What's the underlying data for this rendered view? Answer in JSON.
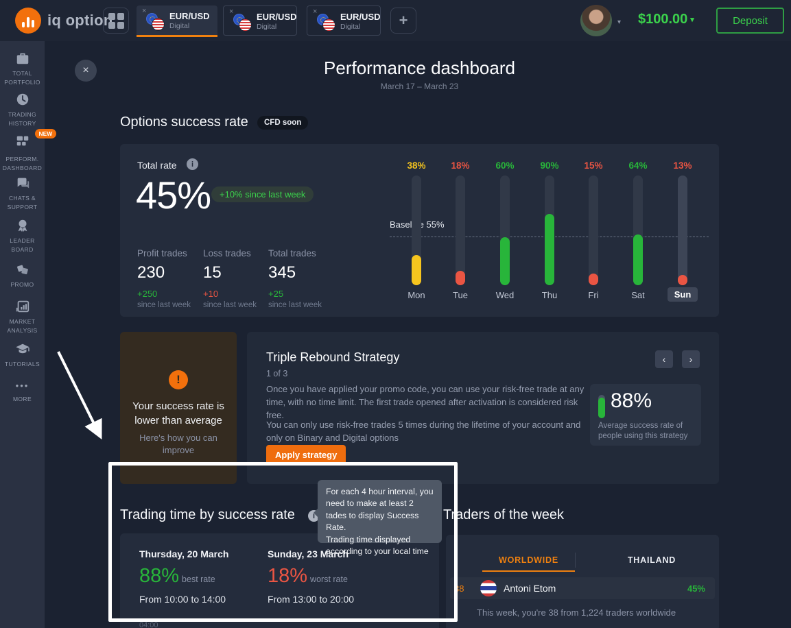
{
  "colors": {
    "green": "#28b53a",
    "red": "#ea5543",
    "yellow": "#f6c51e",
    "orange": "#f0810f",
    "money_green": "#3bd24c"
  },
  "icons": {
    "close": "×",
    "plus": "+",
    "chevron_down": "▾",
    "chevron_left": "‹",
    "chevron_right": "›",
    "info": "i",
    "warning": "!",
    "dots": "•••"
  },
  "topbar": {
    "logo_text": "iq option",
    "tabs": [
      {
        "symbol": "EUR/USD",
        "type": "Digital"
      },
      {
        "symbol": "EUR/USD",
        "type": "Digital"
      },
      {
        "symbol": "EUR/USD",
        "type": "Digital"
      }
    ],
    "balance": "$100.00",
    "deposit_label": "Deposit"
  },
  "sidebar": {
    "items": [
      {
        "label": "TOTAL PORTFOLIO"
      },
      {
        "label": "TRADING HISTORY"
      },
      {
        "label": "PERFORM. DASHBOARD",
        "badge": "NEW"
      },
      {
        "label": "CHATS & SUPPORT"
      },
      {
        "label": "LEADER BOARD"
      },
      {
        "label": "PROMO"
      },
      {
        "label": "MARKET ANALYSIS"
      },
      {
        "label": "TUTORIALS"
      },
      {
        "label": "MORE"
      }
    ]
  },
  "header": {
    "title": "Performance dashboard",
    "date_range": "March 17 – March 23"
  },
  "success_rate": {
    "heading": "Options success rate",
    "badge": "CFD soon",
    "total_rate_label": "Total rate",
    "total_rate": "45%",
    "trend_pill": "+10% since last week",
    "stats": [
      {
        "label": "Profit trades",
        "value": "230",
        "delta": "+250",
        "delta_color": "#28b53a",
        "caption": "since last week"
      },
      {
        "label": "Loss trades",
        "value": "15",
        "delta": "+10",
        "delta_color": "#ea5543",
        "caption": "since last week"
      },
      {
        "label": "Total trades",
        "value": "345",
        "delta": "+25",
        "delta_color": "#28b53a",
        "caption": "since last week"
      }
    ],
    "chart_data": {
      "type": "bar",
      "categories": [
        "Mon",
        "Tue",
        "Wed",
        "Thu",
        "Fri",
        "Sat",
        "Sun"
      ],
      "values": [
        38,
        18,
        60,
        90,
        15,
        64,
        13
      ],
      "pct_labels": [
        "38%",
        "18%",
        "60%",
        "90%",
        "15%",
        "64%",
        "13%"
      ],
      "bar_colors": [
        "#f6c51e",
        "#ea5543",
        "#28b53a",
        "#28b53a",
        "#ea5543",
        "#28b53a",
        "#ea5543"
      ],
      "baseline": 55,
      "baseline_label": "Baseline 55%",
      "selected_day": "Sun",
      "ylim": [
        0,
        100
      ]
    }
  },
  "alert_card": {
    "title": "Your success rate is lower than average",
    "subtitle": "Here's how you can improve"
  },
  "strategy": {
    "title": "Triple Rebound Strategy",
    "step": "1 of 3",
    "p1": "Once you have applied your promo code, you can use your risk-free trade at any time, with no time limit. The first trade opened after activation is considered risk free.",
    "p2": "You can only use risk-free trades 5 times during the lifetime of your account and only on Binary and Digital options",
    "apply_label": "Apply strategy",
    "stat_value": "88%",
    "stat_caption": "Average success rate of people using this strategy"
  },
  "trading_time": {
    "heading": "Trading time by success rate",
    "cols": [
      {
        "date": "Thursday, 20 March",
        "rate": "88%",
        "rate_color": "#28b53a",
        "tag": "best rate",
        "range": "From 10:00 to 14:00"
      },
      {
        "date": "Sunday, 23 March",
        "rate": "18%",
        "rate_color": "#ea5543",
        "tag": "worst rate",
        "range": "From 13:00 to 20:00"
      }
    ],
    "axis_partial": "04:00",
    "tooltip": "For each 4 hour interval, you need to make at least 2 tades to display Success Rate.\nTrading time displayed according to your local time"
  },
  "traders": {
    "heading": "Traders of the week",
    "tabs": [
      {
        "label": "WORLDWIDE"
      },
      {
        "label": "THAILAND"
      }
    ],
    "row": {
      "rank": "38",
      "name": "Antoni Etom",
      "pct": "45%",
      "pct_color": "#28b53a"
    },
    "caption": "This week, you're 38 from 1,224 traders worldwide"
  }
}
